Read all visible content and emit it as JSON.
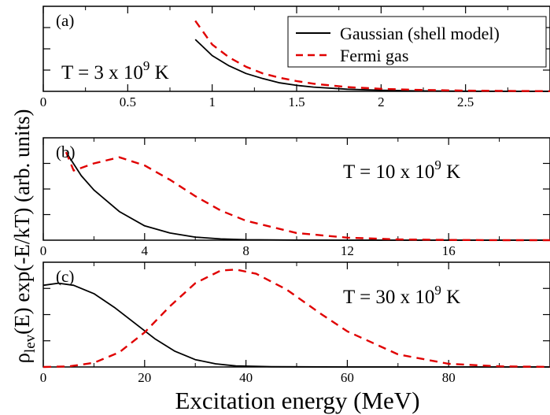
{
  "figure": {
    "ylabel_main": "ρ",
    "ylabel_sub": "lev",
    "ylabel_rest": "(E) exp(-E/kT)      (arb. units)",
    "xlabel": "Excitation energy (MeV)"
  },
  "legend": {
    "entries": [
      {
        "label": "Gaussian (shell model)",
        "color": "#000000",
        "dash": "solid"
      },
      {
        "label": "Fermi gas",
        "color": "#e00000",
        "dash": "dashed"
      }
    ]
  },
  "chart_data": [
    {
      "type": "line",
      "panel_label": "(a)",
      "annotation": "T = 3 x 10",
      "annotation_exp": "9",
      "annotation_unit": "K",
      "xlim": [
        0,
        3.0
      ],
      "ylim": [
        0,
        1.0
      ],
      "xticks": [
        0,
        0.5,
        1,
        1.5,
        2,
        2.5
      ],
      "xtick_labels": [
        "0",
        "0.5",
        "1",
        "1.5",
        "2",
        "2.5"
      ],
      "series": [
        {
          "name": "Gaussian (shell model)",
          "color": "#000000",
          "x": [
            0.9,
            1.0,
            1.1,
            1.2,
            1.3,
            1.4,
            1.5,
            1.6,
            1.8,
            2.0,
            2.2,
            2.5,
            3.0
          ],
          "y": [
            0.61,
            0.42,
            0.3,
            0.21,
            0.15,
            0.1,
            0.07,
            0.05,
            0.025,
            0.013,
            0.006,
            0.002,
            0.0
          ]
        },
        {
          "name": "Fermi gas",
          "color": "#e00000",
          "x": [
            0.9,
            1.0,
            1.1,
            1.2,
            1.3,
            1.4,
            1.5,
            1.6,
            1.8,
            2.0,
            2.2,
            2.5,
            3.0
          ],
          "y": [
            0.83,
            0.55,
            0.4,
            0.29,
            0.21,
            0.16,
            0.12,
            0.09,
            0.05,
            0.03,
            0.018,
            0.008,
            0.002
          ]
        }
      ]
    },
    {
      "type": "line",
      "panel_label": "(b)",
      "annotation": "T = 10 x 10",
      "annotation_exp": "9",
      "annotation_unit": "K",
      "xlim": [
        0,
        20
      ],
      "ylim": [
        0,
        1.0
      ],
      "xticks": [
        0,
        4,
        8,
        12,
        16
      ],
      "xtick_labels": [
        "0",
        "4",
        "8",
        "12",
        "16"
      ],
      "series": [
        {
          "name": "Gaussian (shell model)",
          "color": "#000000",
          "x": [
            0.9,
            1.5,
            2,
            3,
            4,
            5,
            6,
            7,
            8,
            10,
            12,
            20
          ],
          "y": [
            0.86,
            0.63,
            0.49,
            0.28,
            0.14,
            0.07,
            0.03,
            0.012,
            0.005,
            0.001,
            0.0,
            0.0
          ]
        },
        {
          "name": "Fermi gas",
          "color": "#e00000",
          "x": [
            0.9,
            1.2,
            2,
            3,
            4,
            5,
            6,
            7,
            8,
            10,
            12,
            14,
            16,
            18,
            20
          ],
          "y": [
            0.86,
            0.68,
            0.75,
            0.81,
            0.73,
            0.59,
            0.43,
            0.29,
            0.19,
            0.07,
            0.025,
            0.008,
            0.002,
            0.0,
            0.0
          ]
        }
      ]
    },
    {
      "type": "line",
      "panel_label": "(c)",
      "annotation": "T = 30 x 10",
      "annotation_exp": "9",
      "annotation_unit": "K",
      "xlim": [
        0,
        100
      ],
      "ylim": [
        0,
        1.0
      ],
      "xticks": [
        0,
        20,
        40,
        60,
        80
      ],
      "xtick_labels": [
        "0",
        "20",
        "40",
        "60",
        "80"
      ],
      "series": [
        {
          "name": "Gaussian (shell model)",
          "color": "#000000",
          "x": [
            0,
            3,
            6,
            10,
            14,
            18,
            22,
            26,
            30,
            34,
            38,
            45,
            60,
            100
          ],
          "y": [
            0.78,
            0.8,
            0.78,
            0.7,
            0.57,
            0.42,
            0.27,
            0.15,
            0.07,
            0.03,
            0.01,
            0.002,
            0.0,
            0.0
          ]
        },
        {
          "name": "Fermi gas",
          "color": "#e00000",
          "x": [
            0,
            5,
            10,
            15,
            20,
            25,
            30,
            35,
            38,
            42,
            48,
            55,
            60,
            70,
            80,
            90,
            100
          ],
          "y": [
            0.0,
            0.005,
            0.04,
            0.14,
            0.33,
            0.58,
            0.8,
            0.92,
            0.93,
            0.89,
            0.74,
            0.5,
            0.34,
            0.12,
            0.03,
            0.006,
            0.001
          ]
        }
      ]
    }
  ]
}
